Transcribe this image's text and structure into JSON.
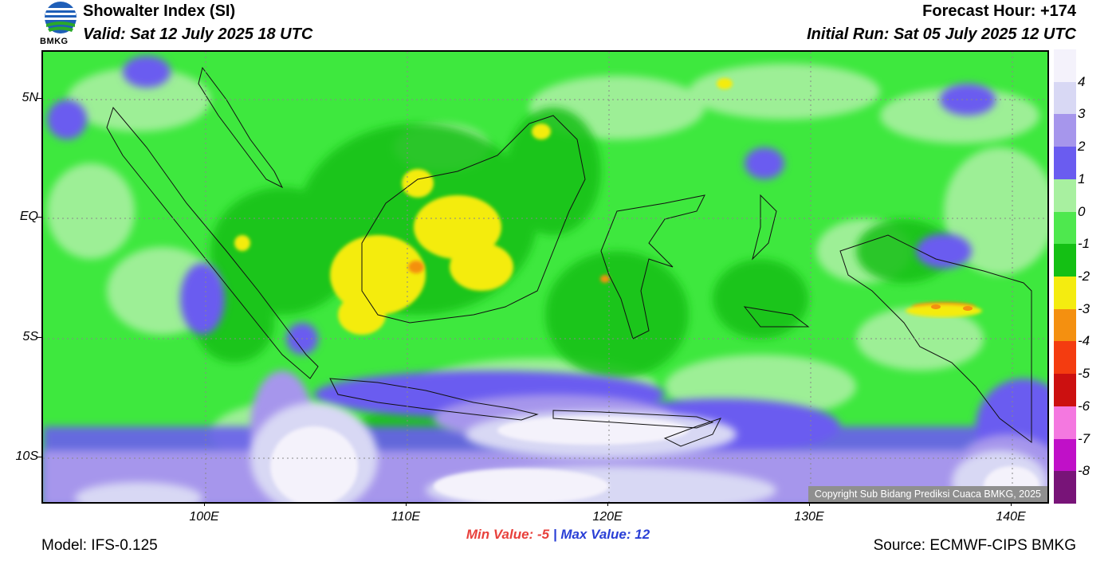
{
  "header": {
    "title": "Showalter Index (SI)",
    "valid": "Valid: Sat 12 July 2025 18 UTC",
    "forecast_hour": "Forecast Hour: +174",
    "initial_run": "Initial Run: Sat 05 July 2025 12 UTC",
    "logo_text": "BMKG"
  },
  "map": {
    "lat_labels": [
      "5N",
      "EQ",
      "5S",
      "10S"
    ],
    "lon_labels": [
      "100E",
      "110E",
      "120E",
      "130E",
      "140E"
    ],
    "copyright": "Copyright Sub Bidang Prediksi Cuaca BMKG, 2025"
  },
  "colorbar": {
    "labels": [
      "4",
      "3",
      "2",
      "1",
      "0",
      "-1",
      "-2",
      "-3",
      "-4",
      "-5",
      "-6",
      "-7",
      "-8"
    ],
    "colors": [
      "#f4f2fb",
      "#d8d8f4",
      "#a696ec",
      "#6a5cf0",
      "#a8f0a0",
      "#4ee84e",
      "#14c014",
      "#f4ec10",
      "#f49010",
      "#f43c10",
      "#cc1010",
      "#f478e0",
      "#c010c8",
      "#781478"
    ]
  },
  "stats": {
    "min_label": "Min Value:",
    "min_value": "-5",
    "separator": "|",
    "max_label": "Max Value:",
    "max_value": "12"
  },
  "footer": {
    "model": "Model: IFS-0.125",
    "source": "Source: ECMWF-CIPS BMKG"
  }
}
